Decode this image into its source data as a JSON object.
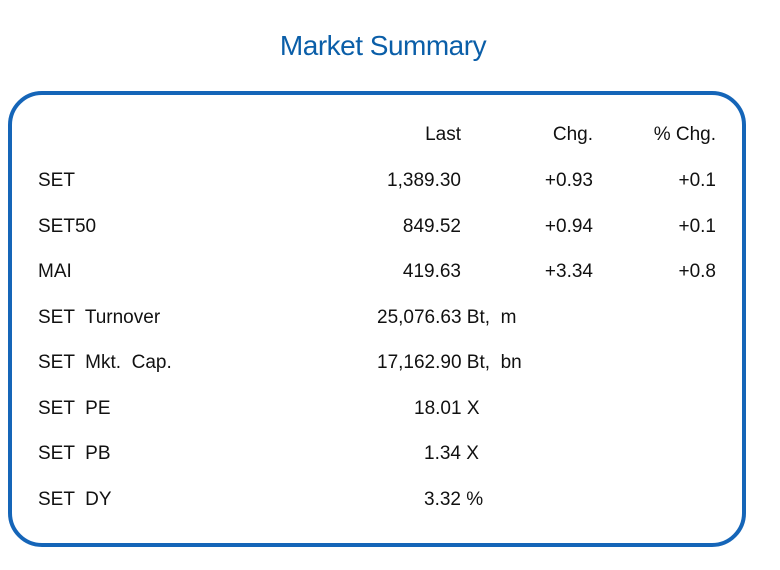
{
  "title": "Market Summary",
  "headers": {
    "last": "Last",
    "chg": "Chg.",
    "pct_chg": "% Chg."
  },
  "indices": [
    {
      "name": "SET",
      "last": "1,389.30",
      "chg": "+0.93",
      "pct_chg": "+0.1"
    },
    {
      "name": "SET50",
      "last": "849.52",
      "chg": "+0.94",
      "pct_chg": "+0.1"
    },
    {
      "name": "MAI",
      "last": "419.63",
      "chg": "+3.34",
      "pct_chg": "+0.8"
    }
  ],
  "stats": [
    {
      "name": "SET  Turnover",
      "value": "25,076.63 Bt,  m"
    },
    {
      "name": "SET  Mkt.  Cap.",
      "value": "17,162.90 Bt,  bn"
    },
    {
      "name": "SET  PE",
      "value": "18.01 X"
    },
    {
      "name": "SET  PB",
      "value": "1.34 X"
    },
    {
      "name": "SET  DY",
      "value": "3.32 %"
    }
  ]
}
